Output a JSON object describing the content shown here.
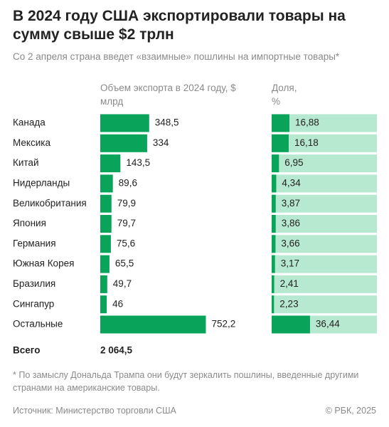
{
  "title": "В 2024 году США экспортировали товары на сумму свыше $2 трлн",
  "subtitle": "Со 2 апреля страна введет «взаимные» пошлины на импортные товары*",
  "chart_data": [
    {
      "type": "bar",
      "orientation": "horizontal",
      "title": "Объем экспорта в 2024 году, $ млрд",
      "categories": [
        "Канада",
        "Мексика",
        "Китай",
        "Нидерланды",
        "Великобритания",
        "Япония",
        "Германия",
        "Южная Корея",
        "Бразилия",
        "Сингапур",
        "Остальные"
      ],
      "values": [
        348.5,
        334,
        143.5,
        89.6,
        79.9,
        79.7,
        75.6,
        65.5,
        49.7,
        46,
        752.2
      ],
      "value_labels": [
        "348,5",
        "334",
        "143,5",
        "89,6",
        "79,9",
        "79,7",
        "75,6",
        "65,5",
        "49,7",
        "46",
        "752,2"
      ],
      "color": "#0aa35a",
      "xlim": [
        0,
        760
      ],
      "total": {
        "label": "Всего",
        "value": 2064.5,
        "value_label": "2 064,5"
      }
    },
    {
      "type": "bar",
      "orientation": "horizontal",
      "title": "Доля, %",
      "values": [
        16.88,
        16.18,
        6.95,
        4.34,
        3.87,
        3.86,
        3.66,
        3.17,
        2.41,
        2.23,
        36.44
      ],
      "value_labels": [
        "16,88",
        "16,18",
        "6,95",
        "4,34",
        "3,87",
        "3,86",
        "3,66",
        "3,17",
        "2,41",
        "2,23",
        "36,44"
      ],
      "color": "#0aa35a",
      "background": "#b7e9d0",
      "xlim": [
        0,
        100
      ]
    }
  ],
  "footnote": "* По замыслу Дональда Трампа они будут зеркалить пошлины, введенные другими странами на американские товары.",
  "source": "Источник: Министерство торговли США",
  "copyright": "© РБК, 2025"
}
